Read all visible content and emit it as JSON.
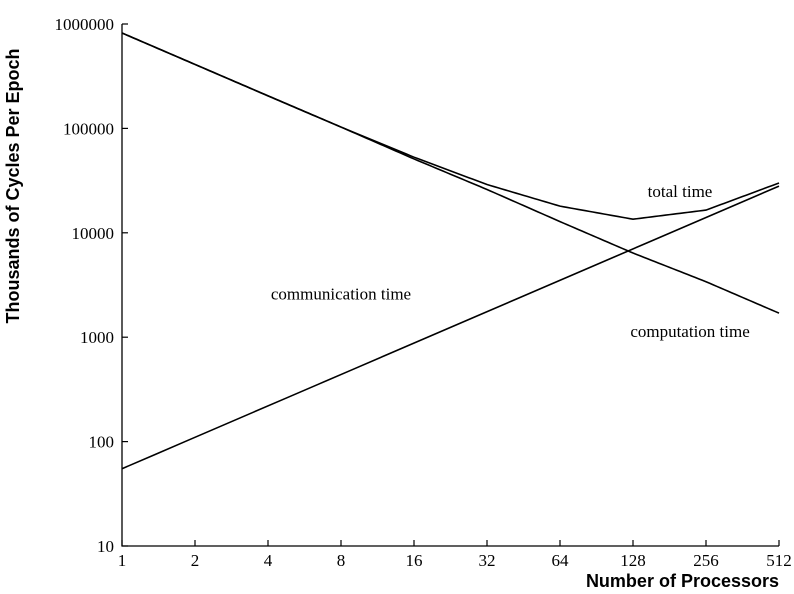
{
  "chart_data": {
    "type": "line",
    "title": "",
    "xlabel": "Number of Processors",
    "ylabel": "Thousands of Cycles Per Epoch",
    "x_scale": "log2",
    "y_scale": "log10",
    "xlim": [
      1,
      512
    ],
    "ylim": [
      10,
      1000000
    ],
    "x_ticks": [
      1,
      2,
      4,
      8,
      16,
      32,
      64,
      128,
      256,
      512
    ],
    "x_tick_labels": [
      "1",
      "2",
      "4",
      "8",
      "16",
      "32",
      "64",
      "128",
      "256",
      "512"
    ],
    "y_ticks": [
      10,
      100,
      1000,
      10000,
      100000,
      1000000
    ],
    "y_tick_labels": [
      "10",
      "100",
      "1000",
      "10000",
      "100000",
      "1000000"
    ],
    "grid": false,
    "series": [
      {
        "name": "total time",
        "x": [
          1,
          2,
          4,
          8,
          16,
          32,
          64,
          128,
          256,
          512
        ],
        "y": [
          820000,
          410000,
          205000,
          103000,
          53000,
          29000,
          18000,
          13500,
          16500,
          30000
        ]
      },
      {
        "name": "communication time",
        "x": [
          1,
          512
        ],
        "y": [
          55,
          28000
        ]
      },
      {
        "name": "computation time",
        "x": [
          1,
          2,
          4,
          8,
          16,
          32,
          64,
          128,
          256,
          512
        ],
        "y": [
          820000,
          410000,
          205000,
          103000,
          51000,
          26000,
          12800,
          6400,
          3400,
          1700
        ]
      }
    ],
    "annotations": [
      {
        "text": "total time",
        "x": 200,
        "y": 22000
      },
      {
        "text": "communication time",
        "x": 8,
        "y": 2300
      },
      {
        "text": "computation time",
        "x": 220,
        "y": 1000
      }
    ]
  }
}
